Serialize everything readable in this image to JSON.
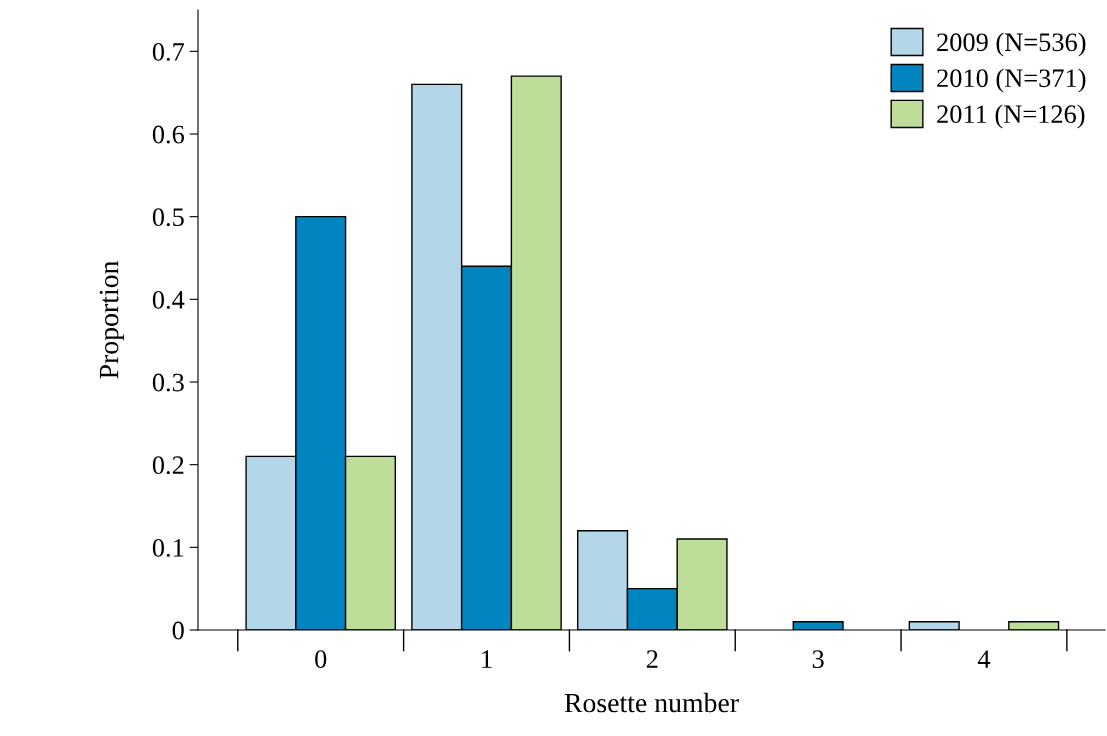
{
  "chart_data": {
    "type": "bar",
    "xlabel": "Rosette number",
    "ylabel": "Proportion",
    "categories": [
      "0",
      "1",
      "2",
      "3",
      "4"
    ],
    "series": [
      {
        "name": "2009 (N=536)",
        "color": "#b3d7e8",
        "values": [
          0.21,
          0.66,
          0.12,
          0,
          0.01
        ]
      },
      {
        "name": "2010 (N=371)",
        "color": "#0085c0",
        "values": [
          0.5,
          0.44,
          0.05,
          0.01,
          0
        ]
      },
      {
        "name": "2011 (N=126)",
        "color": "#bedd98",
        "values": [
          0.21,
          0.67,
          0.11,
          0,
          0.01
        ]
      }
    ],
    "ylim": [
      0,
      0.75
    ],
    "yticks": [
      0,
      0.1,
      0.2,
      0.3,
      0.4,
      0.5,
      0.6,
      0.7
    ],
    "grid": false,
    "legend": "top right"
  }
}
